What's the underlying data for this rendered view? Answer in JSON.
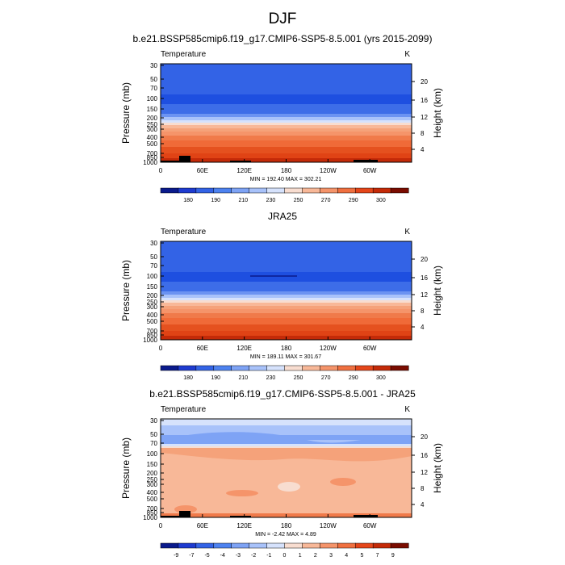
{
  "page": {
    "title": "DJF"
  },
  "colors": {
    "temp_cbar": [
      "#0a1a8c",
      "#1e3bd0",
      "#3363e6",
      "#4d82f0",
      "#7ea3f5",
      "#a8c2fa",
      "#d6e2fc",
      "#f8ddd0",
      "#f8b898",
      "#f5946a",
      "#f07040",
      "#e5461a",
      "#c42a08",
      "#7a0c00"
    ],
    "diff_cbar": [
      "#0a1a8c",
      "#1e3bd0",
      "#3363e6",
      "#4d82f0",
      "#7ea3f5",
      "#a8c2fa",
      "#d6e2fc",
      "#f8ddd0",
      "#f8b898",
      "#f5946a",
      "#f07040",
      "#e5461a",
      "#c42a08",
      "#7a0c00"
    ]
  },
  "chart_data": [
    {
      "type": "heatmap",
      "title": "b.e21.BSSP585cmip6.f19_g17.CMIP6-SSP5-8.5.001 (yrs 2015-2099)",
      "left_label": "Temperature",
      "right_label": "K",
      "ylabel": "Pressure (mb)",
      "y2label": "Height (km)",
      "x_ticks": [
        "0",
        "60E",
        "120E",
        "180",
        "120W",
        "60W"
      ],
      "y_ticks": [
        "30",
        "50",
        "70",
        "100",
        "150",
        "200",
        "250",
        "300",
        "400",
        "500",
        "700",
        "850",
        "1000"
      ],
      "y2_ticks": [
        "20",
        "16",
        "12",
        "8",
        "4"
      ],
      "stats": "MIN = 192.40  MAX = 302.21",
      "colorbar_labels": [
        "180",
        "190",
        "210",
        "230",
        "250",
        "270",
        "290",
        "300"
      ],
      "colorbar_levels": [
        175,
        180,
        185,
        190,
        200,
        210,
        220,
        230,
        240,
        250,
        260,
        270,
        280,
        290,
        300,
        305
      ]
    },
    {
      "type": "heatmap",
      "title": "JRA25",
      "left_label": "Temperature",
      "right_label": "K",
      "ylabel": "Pressure (mb)",
      "y2label": "Height (km)",
      "x_ticks": [
        "0",
        "60E",
        "120E",
        "180",
        "120W",
        "60W"
      ],
      "y_ticks": [
        "30",
        "50",
        "70",
        "100",
        "150",
        "200",
        "250",
        "300",
        "400",
        "500",
        "700",
        "850",
        "1000"
      ],
      "y2_ticks": [
        "20",
        "16",
        "12",
        "8",
        "4"
      ],
      "stats": "MIN = 189.11  MAX = 301.67",
      "colorbar_labels": [
        "180",
        "190",
        "210",
        "230",
        "250",
        "270",
        "290",
        "300"
      ],
      "colorbar_levels": [
        175,
        180,
        185,
        190,
        200,
        210,
        220,
        230,
        240,
        250,
        260,
        270,
        280,
        290,
        300,
        305
      ]
    },
    {
      "type": "heatmap",
      "title": "b.e21.BSSP585cmip6.f19_g17.CMIP6-SSP5-8.5.001 - JRA25",
      "left_label": "Temperature",
      "right_label": "K",
      "ylabel": "Pressure (mb)",
      "y2label": "Height (km)",
      "x_ticks": [
        "0",
        "60E",
        "120E",
        "180",
        "120W",
        "60W"
      ],
      "y_ticks": [
        "30",
        "50",
        "70",
        "100",
        "150",
        "200",
        "250",
        "300",
        "400",
        "500",
        "700",
        "850",
        "1000"
      ],
      "y2_ticks": [
        "20",
        "16",
        "12",
        "8",
        "4"
      ],
      "stats": "MIN =  -2.42  MAX =   4.89",
      "colorbar_labels": [
        "-9",
        "-7",
        "-5",
        "-4",
        "-3",
        "-2",
        "-1",
        "0",
        "1",
        "2",
        "3",
        "4",
        "5",
        "7",
        "9"
      ],
      "colorbar_levels": [
        -11,
        -9,
        -7,
        -5,
        -4,
        -3,
        -2,
        -1,
        0,
        1,
        2,
        3,
        4,
        5,
        7,
        9,
        11
      ]
    }
  ]
}
